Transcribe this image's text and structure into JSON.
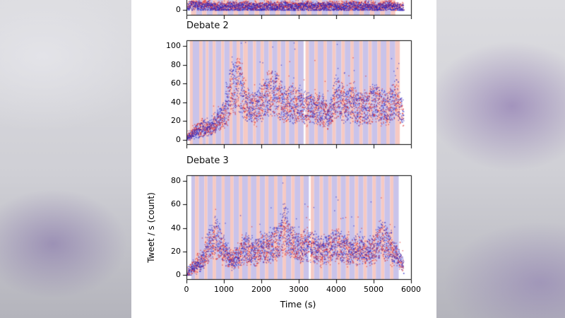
{
  "figure": {
    "ylabel": "Tweet / s (count)",
    "xlabel": "Time (s)",
    "colors": {
      "band_red": "#f6c9c3",
      "band_blue": "#c9c3ea",
      "point_red": "#dc1f1f",
      "point_blue": "#2424c4",
      "axis": "#000000",
      "panel_bg": "#ffffff"
    }
  },
  "chart_data": [
    {
      "type": "scatter",
      "title": "",
      "xlim": [
        0,
        6000
      ],
      "yticks": [
        0
      ],
      "bands": [
        [
          120,
          260,
          "r"
        ],
        [
          260,
          420,
          "b"
        ],
        [
          420,
          540,
          "r"
        ],
        [
          540,
          700,
          "b"
        ],
        [
          700,
          820,
          "r"
        ],
        [
          820,
          980,
          "b"
        ],
        [
          980,
          1100,
          "r"
        ],
        [
          1100,
          1260,
          "b"
        ],
        [
          1260,
          1380,
          "r"
        ],
        [
          1380,
          1540,
          "b"
        ],
        [
          1540,
          1660,
          "r"
        ],
        [
          1660,
          1820,
          "b"
        ],
        [
          1820,
          1940,
          "r"
        ],
        [
          1940,
          2100,
          "b"
        ],
        [
          2100,
          2220,
          "r"
        ],
        [
          2220,
          2380,
          "b"
        ],
        [
          2380,
          2500,
          "r"
        ],
        [
          2500,
          2660,
          "b"
        ],
        [
          2660,
          2780,
          "r"
        ],
        [
          2780,
          2940,
          "b"
        ],
        [
          2940,
          3060,
          "r"
        ],
        [
          3060,
          3220,
          "b"
        ],
        [
          3220,
          3340,
          "r"
        ],
        [
          3340,
          3500,
          "b"
        ],
        [
          3500,
          3620,
          "r"
        ],
        [
          3620,
          3780,
          "b"
        ],
        [
          3780,
          3900,
          "r"
        ],
        [
          3900,
          4060,
          "b"
        ],
        [
          4060,
          4180,
          "r"
        ],
        [
          4180,
          4340,
          "b"
        ],
        [
          4340,
          4460,
          "r"
        ],
        [
          4460,
          4620,
          "b"
        ],
        [
          4620,
          4740,
          "r"
        ],
        [
          4740,
          4900,
          "b"
        ],
        [
          4900,
          5020,
          "r"
        ],
        [
          5020,
          5180,
          "b"
        ],
        [
          5180,
          5300,
          "r"
        ],
        [
          5300,
          5460,
          "b"
        ],
        [
          5460,
          5580,
          "r"
        ]
      ],
      "series": [
        {
          "name": "red",
          "x_step": 200,
          "means": [
            5,
            8,
            6,
            5,
            4,
            4,
            5,
            4,
            5,
            4,
            4,
            5,
            4,
            5,
            4,
            4,
            5,
            4,
            4,
            5,
            4,
            4,
            5,
            4,
            5,
            4,
            4,
            5,
            4,
            3,
            2
          ]
        },
        {
          "name": "blue",
          "x_step": 200,
          "means": [
            3,
            5,
            4,
            4,
            3,
            3,
            4,
            3,
            4,
            3,
            3,
            4,
            3,
            4,
            3,
            3,
            4,
            3,
            3,
            4,
            3,
            3,
            4,
            3,
            4,
            3,
            3,
            4,
            3,
            2,
            2
          ]
        }
      ]
    },
    {
      "type": "scatter",
      "title": "Debate 2",
      "xlim": [
        0,
        6000
      ],
      "ylim": [
        0,
        105
      ],
      "yticks": [
        0,
        20,
        40,
        60,
        80,
        100
      ],
      "bands": [
        [
          90,
          170,
          "r"
        ],
        [
          170,
          340,
          "b"
        ],
        [
          340,
          430,
          "r"
        ],
        [
          430,
          520,
          "b"
        ],
        [
          520,
          590,
          "r"
        ],
        [
          590,
          700,
          "b"
        ],
        [
          700,
          780,
          "r"
        ],
        [
          780,
          930,
          "b"
        ],
        [
          930,
          1010,
          "r"
        ],
        [
          1010,
          1150,
          "b"
        ],
        [
          1150,
          1230,
          "r"
        ],
        [
          1230,
          1340,
          "b"
        ],
        [
          1340,
          1430,
          "r"
        ],
        [
          1430,
          1520,
          "b"
        ],
        [
          1520,
          1640,
          "r"
        ],
        [
          1640,
          1780,
          "b"
        ],
        [
          1780,
          1860,
          "r"
        ],
        [
          1860,
          1980,
          "b"
        ],
        [
          1980,
          2070,
          "r"
        ],
        [
          2070,
          2200,
          "b"
        ],
        [
          2200,
          2290,
          "r"
        ],
        [
          2290,
          2430,
          "b"
        ],
        [
          2430,
          2520,
          "r"
        ],
        [
          2520,
          2650,
          "b"
        ],
        [
          2650,
          2740,
          "r"
        ],
        [
          2740,
          2890,
          "b"
        ],
        [
          2890,
          2980,
          "r"
        ],
        [
          2980,
          3130,
          "b"
        ],
        [
          3180,
          3270,
          "r"
        ],
        [
          3270,
          3420,
          "b"
        ],
        [
          3420,
          3510,
          "r"
        ],
        [
          3510,
          3660,
          "b"
        ],
        [
          3660,
          3750,
          "r"
        ],
        [
          3750,
          3900,
          "b"
        ],
        [
          3900,
          3990,
          "r"
        ],
        [
          3990,
          4140,
          "b"
        ],
        [
          4140,
          4230,
          "r"
        ],
        [
          4230,
          4380,
          "b"
        ],
        [
          4380,
          4470,
          "r"
        ],
        [
          4470,
          4620,
          "b"
        ],
        [
          4620,
          4710,
          "r"
        ],
        [
          4710,
          4860,
          "b"
        ],
        [
          4860,
          4950,
          "r"
        ],
        [
          4950,
          5100,
          "b"
        ],
        [
          5100,
          5190,
          "r"
        ],
        [
          5190,
          5340,
          "b"
        ],
        [
          5340,
          5430,
          "r"
        ],
        [
          5430,
          5580,
          "b"
        ],
        [
          5580,
          5700,
          "r"
        ]
      ],
      "series": [
        {
          "name": "red",
          "x_step": 200,
          "means": [
            3,
            10,
            14,
            12,
            18,
            26,
            48,
            62,
            40,
            30,
            38,
            52,
            48,
            36,
            40,
            36,
            32,
            36,
            30,
            24,
            45,
            40,
            42,
            32,
            36,
            40,
            34,
            36,
            44,
            20,
            6
          ]
        },
        {
          "name": "blue",
          "x_step": 200,
          "means": [
            2,
            8,
            12,
            14,
            20,
            30,
            60,
            55,
            38,
            32,
            42,
            48,
            52,
            40,
            38,
            40,
            36,
            32,
            34,
            26,
            50,
            38,
            40,
            34,
            32,
            42,
            36,
            34,
            48,
            22,
            5
          ]
        }
      ]
    },
    {
      "type": "scatter",
      "title": "Debate 3",
      "xlim": [
        0,
        6000
      ],
      "ylim": [
        0,
        85
      ],
      "yticks": [
        0,
        20,
        40,
        60,
        80
      ],
      "xticks": [
        0,
        1000,
        2000,
        3000,
        4000,
        5000,
        6000
      ],
      "bands": [
        [
          130,
          230,
          "b"
        ],
        [
          230,
          330,
          "r"
        ],
        [
          330,
          480,
          "b"
        ],
        [
          480,
          560,
          "r"
        ],
        [
          560,
          700,
          "b"
        ],
        [
          700,
          790,
          "r"
        ],
        [
          790,
          940,
          "b"
        ],
        [
          940,
          1020,
          "r"
        ],
        [
          1020,
          1170,
          "b"
        ],
        [
          1170,
          1260,
          "r"
        ],
        [
          1260,
          1400,
          "b"
        ],
        [
          1400,
          1490,
          "r"
        ],
        [
          1490,
          1640,
          "b"
        ],
        [
          1640,
          1720,
          "r"
        ],
        [
          1720,
          1870,
          "b"
        ],
        [
          1870,
          1960,
          "r"
        ],
        [
          1960,
          2100,
          "b"
        ],
        [
          2100,
          2190,
          "r"
        ],
        [
          2190,
          2340,
          "b"
        ],
        [
          2340,
          2430,
          "r"
        ],
        [
          2430,
          2570,
          "b"
        ],
        [
          2570,
          2660,
          "r"
        ],
        [
          2660,
          2800,
          "b"
        ],
        [
          2800,
          2890,
          "r"
        ],
        [
          2890,
          3040,
          "b"
        ],
        [
          3040,
          3130,
          "r"
        ],
        [
          3130,
          3270,
          "b"
        ],
        [
          3320,
          3410,
          "r"
        ],
        [
          3410,
          3560,
          "b"
        ],
        [
          3560,
          3650,
          "r"
        ],
        [
          3650,
          3790,
          "b"
        ],
        [
          3790,
          3880,
          "r"
        ],
        [
          3880,
          4030,
          "b"
        ],
        [
          4030,
          4120,
          "r"
        ],
        [
          4120,
          4260,
          "b"
        ],
        [
          4260,
          4350,
          "r"
        ],
        [
          4350,
          4500,
          "b"
        ],
        [
          4500,
          4590,
          "r"
        ],
        [
          4590,
          4730,
          "b"
        ],
        [
          4730,
          4820,
          "r"
        ],
        [
          4820,
          4970,
          "b"
        ],
        [
          4970,
          5060,
          "r"
        ],
        [
          5060,
          5200,
          "b"
        ],
        [
          5200,
          5290,
          "r"
        ],
        [
          5290,
          5440,
          "b"
        ],
        [
          5440,
          5530,
          "r"
        ],
        [
          5530,
          5670,
          "b"
        ]
      ],
      "series": [
        {
          "name": "red",
          "x_step": 200,
          "means": [
            2,
            8,
            14,
            24,
            30,
            18,
            14,
            18,
            22,
            18,
            22,
            22,
            26,
            34,
            26,
            22,
            26,
            22,
            18,
            22,
            26,
            22,
            18,
            22,
            18,
            22,
            30,
            24,
            16,
            6,
            3
          ]
        },
        {
          "name": "blue",
          "x_step": 200,
          "means": [
            2,
            6,
            12,
            28,
            34,
            20,
            14,
            16,
            24,
            20,
            24,
            24,
            28,
            46,
            28,
            24,
            24,
            24,
            20,
            24,
            28,
            24,
            20,
            24,
            20,
            24,
            32,
            26,
            18,
            8,
            3
          ]
        }
      ]
    }
  ]
}
